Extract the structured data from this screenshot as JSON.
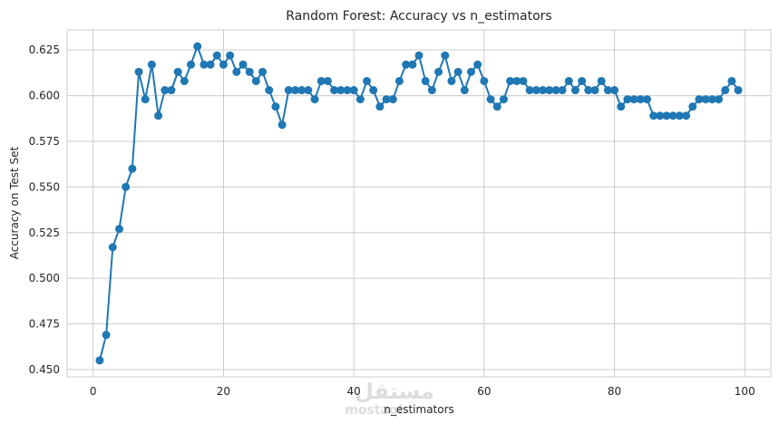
{
  "chart_data": {
    "type": "line",
    "title": "Random Forest: Accuracy vs n_estimators",
    "xlabel": "n_estimators",
    "ylabel": "Accuracy on Test Set",
    "xlim": [
      -4,
      104
    ],
    "ylim": [
      0.446,
      0.636
    ],
    "xticks": [
      0,
      20,
      40,
      60,
      80,
      100
    ],
    "yticks": [
      0.45,
      0.475,
      0.5,
      0.525,
      0.55,
      0.575,
      0.6,
      0.625
    ],
    "xtick_labels": [
      "0",
      "20",
      "40",
      "60",
      "80",
      "100"
    ],
    "ytick_labels": [
      "0.450",
      "0.475",
      "0.500",
      "0.525",
      "0.550",
      "0.575",
      "0.600",
      "0.625"
    ],
    "grid": true,
    "legend": "none",
    "color": "#1f77b4",
    "marker": "circle",
    "x": [
      1,
      2,
      3,
      4,
      5,
      6,
      7,
      8,
      9,
      10,
      11,
      12,
      13,
      14,
      15,
      16,
      17,
      18,
      19,
      20,
      21,
      22,
      23,
      24,
      25,
      26,
      27,
      28,
      29,
      30,
      31,
      32,
      33,
      34,
      35,
      36,
      37,
      38,
      39,
      40,
      41,
      42,
      43,
      44,
      45,
      46,
      47,
      48,
      49,
      50,
      51,
      52,
      53,
      54,
      55,
      56,
      57,
      58,
      59,
      60,
      61,
      62,
      63,
      64,
      65,
      66,
      67,
      68,
      69,
      70,
      71,
      72,
      73,
      74,
      75,
      76,
      77,
      78,
      79,
      80,
      81,
      82,
      83,
      84,
      85,
      86,
      87,
      88,
      89,
      90,
      91,
      92,
      93,
      94,
      95,
      96,
      97,
      98,
      99
    ],
    "y": [
      0.455,
      0.469,
      0.517,
      0.527,
      0.55,
      0.56,
      0.613,
      0.598,
      0.617,
      0.589,
      0.603,
      0.603,
      0.613,
      0.608,
      0.617,
      0.627,
      0.617,
      0.617,
      0.622,
      0.617,
      0.622,
      0.613,
      0.617,
      0.613,
      0.608,
      0.613,
      0.603,
      0.594,
      0.584,
      0.603,
      0.603,
      0.603,
      0.603,
      0.598,
      0.608,
      0.608,
      0.603,
      0.603,
      0.603,
      0.603,
      0.598,
      0.608,
      0.603,
      0.594,
      0.598,
      0.598,
      0.608,
      0.617,
      0.617,
      0.622,
      0.608,
      0.603,
      0.613,
      0.622,
      0.608,
      0.613,
      0.603,
      0.613,
      0.617,
      0.608,
      0.598,
      0.594,
      0.598,
      0.608,
      0.608,
      0.608,
      0.603,
      0.603,
      0.603,
      0.603,
      0.603,
      0.603,
      0.608,
      0.603,
      0.608,
      0.603,
      0.603,
      0.608,
      0.603,
      0.603,
      0.594,
      0.598,
      0.598,
      0.598,
      0.598,
      0.589,
      0.589,
      0.589,
      0.589,
      0.589,
      0.589,
      0.594,
      0.598,
      0.598,
      0.598,
      0.598,
      0.603,
      0.608,
      0.603
    ]
  },
  "watermark": {
    "text": "مستقل",
    "sub": "mostaql"
  }
}
